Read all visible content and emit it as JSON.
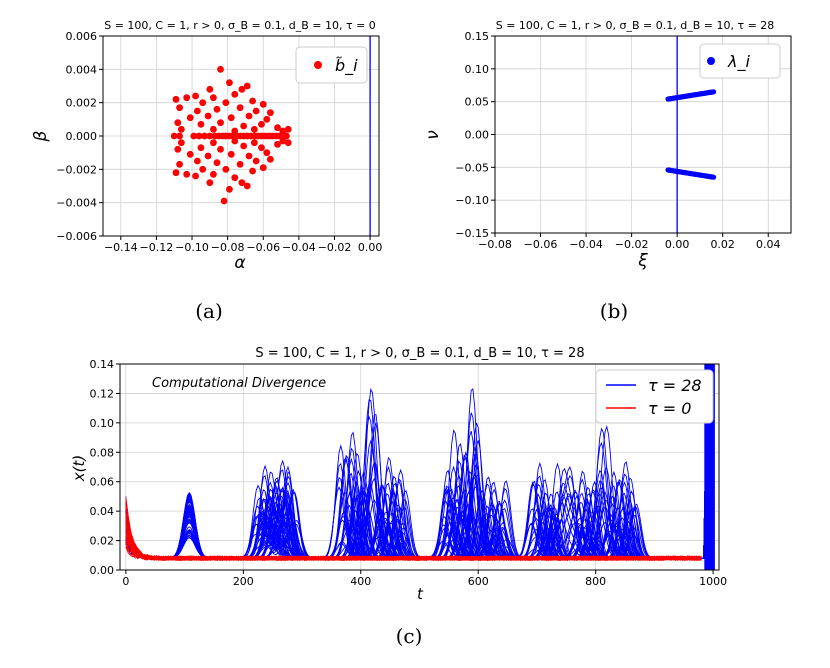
{
  "chart_data": [
    {
      "panel": "a",
      "type": "scatter",
      "title": "S = 100,  C = 1,  r > 0,  σ_B = 0.1,  d_B = 10,  τ = 0",
      "xlabel": "α",
      "ylabel": "β",
      "xlim": [
        -0.15,
        0.005
      ],
      "ylim": [
        -0.006,
        0.006
      ],
      "xticks": [
        -0.14,
        -0.12,
        -0.1,
        -0.08,
        -0.06,
        -0.04,
        -0.02,
        0.0
      ],
      "xtick_labels": [
        "−0.14",
        "−0.12",
        "−0.10",
        "−0.08",
        "−0.06",
        "−0.04",
        "−0.02",
        "0.00"
      ],
      "yticks": [
        -0.006,
        -0.004,
        -0.002,
        0.0,
        0.002,
        0.004,
        0.006
      ],
      "ytick_labels": [
        "−0.006",
        "−0.004",
        "−0.002",
        "0.000",
        "0.002",
        "0.004",
        "0.006"
      ],
      "vline_x": 0.0,
      "grid": true,
      "legend": "top-right",
      "series": [
        {
          "name": "b̃_i",
          "color": "#ff0000",
          "points": [
            [
              -0.084,
              0.004
            ],
            [
              -0.082,
              -0.0039
            ],
            [
              -0.079,
              0.0032
            ],
            [
              -0.09,
              0.0028
            ],
            [
              -0.072,
              0.0028
            ],
            [
              -0.069,
              0.003
            ],
            [
              -0.098,
              0.0024
            ],
            [
              -0.088,
              0.0023
            ],
            [
              -0.076,
              0.0025
            ],
            [
              -0.066,
              0.0021
            ],
            [
              -0.103,
              0.0023
            ],
            [
              -0.109,
              0.0022
            ],
            [
              -0.094,
              0.002
            ],
            [
              -0.081,
              0.002
            ],
            [
              -0.06,
              0.0019
            ],
            [
              -0.107,
              0.0017
            ],
            [
              -0.097,
              0.0015
            ],
            [
              -0.086,
              0.0016
            ],
            [
              -0.073,
              0.0017
            ],
            [
              -0.064,
              0.0015
            ],
            [
              -0.056,
              0.0014
            ],
            [
              -0.101,
              0.0011
            ],
            [
              -0.091,
              0.0012
            ],
            [
              -0.078,
              0.0011
            ],
            [
              -0.068,
              0.0012
            ],
            [
              -0.058,
              0.001
            ],
            [
              -0.108,
              0.0008
            ],
            [
              -0.095,
              0.0007
            ],
            [
              -0.084,
              0.0008
            ],
            [
              -0.071,
              0.0006
            ],
            [
              -0.061,
              0.0007
            ],
            [
              -0.052,
              0.0005
            ],
            [
              -0.106,
              0.0004
            ],
            [
              -0.088,
              0.0004
            ],
            [
              -0.076,
              0.0003
            ],
            [
              -0.065,
              0.0004
            ],
            [
              -0.049,
              0.0003
            ],
            [
              -0.046,
              0.0004
            ],
            [
              -0.11,
              0.0
            ],
            [
              -0.107,
              0.0
            ],
            [
              -0.099,
              0.0
            ],
            [
              -0.096,
              0.0
            ],
            [
              -0.093,
              0.0
            ],
            [
              -0.09,
              0.0
            ],
            [
              -0.087,
              0.0
            ],
            [
              -0.085,
              0.0
            ],
            [
              -0.083,
              0.0
            ],
            [
              -0.081,
              0.0
            ],
            [
              -0.079,
              0.0
            ],
            [
              -0.077,
              0.0
            ],
            [
              -0.075,
              0.0
            ],
            [
              -0.073,
              0.0
            ],
            [
              -0.071,
              0.0
            ],
            [
              -0.069,
              0.0
            ],
            [
              -0.067,
              0.0
            ],
            [
              -0.065,
              0.0
            ],
            [
              -0.063,
              0.0
            ],
            [
              -0.061,
              0.0
            ],
            [
              -0.059,
              0.0
            ],
            [
              -0.057,
              0.0
            ],
            [
              -0.055,
              0.0
            ],
            [
              -0.053,
              0.0
            ],
            [
              -0.051,
              0.0
            ],
            [
              -0.049,
              0.0
            ],
            [
              -0.047,
              0.0
            ],
            [
              -0.106,
              -0.0004
            ],
            [
              -0.088,
              -0.0004
            ],
            [
              -0.076,
              -0.0003
            ],
            [
              -0.065,
              -0.0004
            ],
            [
              -0.049,
              -0.0003
            ],
            [
              -0.046,
              -0.0004
            ],
            [
              -0.108,
              -0.0008
            ],
            [
              -0.095,
              -0.0007
            ],
            [
              -0.084,
              -0.0008
            ],
            [
              -0.071,
              -0.0006
            ],
            [
              -0.061,
              -0.0007
            ],
            [
              -0.052,
              -0.0005
            ],
            [
              -0.101,
              -0.0011
            ],
            [
              -0.091,
              -0.0012
            ],
            [
              -0.078,
              -0.0011
            ],
            [
              -0.068,
              -0.0012
            ],
            [
              -0.058,
              -0.001
            ],
            [
              -0.107,
              -0.0017
            ],
            [
              -0.097,
              -0.0015
            ],
            [
              -0.086,
              -0.0016
            ],
            [
              -0.073,
              -0.0017
            ],
            [
              -0.064,
              -0.0015
            ],
            [
              -0.056,
              -0.0014
            ],
            [
              -0.103,
              -0.0023
            ],
            [
              -0.109,
              -0.0022
            ],
            [
              -0.094,
              -0.002
            ],
            [
              -0.081,
              -0.002
            ],
            [
              -0.06,
              -0.0019
            ],
            [
              -0.098,
              -0.0024
            ],
            [
              -0.088,
              -0.0023
            ],
            [
              -0.076,
              -0.0025
            ],
            [
              -0.066,
              -0.0021
            ],
            [
              -0.079,
              -0.0032
            ],
            [
              -0.09,
              -0.0028
            ],
            [
              -0.072,
              -0.0028
            ],
            [
              -0.069,
              -0.003
            ]
          ]
        }
      ]
    },
    {
      "panel": "b",
      "type": "scatter",
      "title": "S = 100,  C = 1,  r > 0,  σ_B = 0.1,  d_B = 10,  τ = 28",
      "xlabel": "ξ",
      "ylabel": "ν",
      "xlim": [
        -0.08,
        0.05
      ],
      "ylim": [
        -0.15,
        0.15
      ],
      "xticks": [
        -0.08,
        -0.06,
        -0.04,
        -0.02,
        0.0,
        0.02,
        0.04
      ],
      "xtick_labels": [
        "−0.08",
        "−0.06",
        "−0.04",
        "−0.02",
        "0.00",
        "0.02",
        "0.04"
      ],
      "yticks": [
        -0.15,
        -0.1,
        -0.05,
        0.0,
        0.05,
        0.1,
        0.15
      ],
      "ytick_labels": [
        "−0.15",
        "−0.10",
        "−0.05",
        "0.00",
        "0.05",
        "0.10",
        "0.15"
      ],
      "vline_x": 0.0,
      "grid": true,
      "legend": "top-right",
      "series": [
        {
          "name": "λ_i",
          "color": "#0000ff",
          "upper_branch": {
            "x_range": [
              -0.004,
              0.016
            ],
            "y_range": [
              0.054,
              0.065
            ],
            "count": 50
          },
          "lower_branch": {
            "x_range": [
              -0.004,
              0.016
            ],
            "y_range": [
              -0.054,
              -0.065
            ],
            "count": 50
          }
        }
      ]
    },
    {
      "panel": "c",
      "type": "line",
      "title": "S = 100,  C = 1,  r > 0,  σ_B = 0.1,  d_B = 10,  τ = 28",
      "annotation": "Computational Divergence",
      "xlabel": "t",
      "ylabel": "x(t)",
      "xlim": [
        -10,
        1010
      ],
      "ylim": [
        0.0,
        0.14
      ],
      "xticks": [
        0,
        200,
        400,
        600,
        800,
        1000
      ],
      "xtick_labels": [
        "0",
        "200",
        "400",
        "600",
        "800",
        "1000"
      ],
      "yticks": [
        0.0,
        0.02,
        0.04,
        0.06,
        0.08,
        0.1,
        0.12,
        0.14
      ],
      "ytick_labels": [
        "0.00",
        "0.02",
        "0.04",
        "0.06",
        "0.08",
        "0.10",
        "0.12",
        "0.14"
      ],
      "grid": true,
      "legend": "top-right",
      "series": [
        {
          "name": "τ = 28",
          "color": "#0000ff",
          "initial_value": 0.05,
          "baseline": 0.008,
          "bursts": [
            {
              "t": 108,
              "peak": 0.046
            },
            {
              "t": 250,
              "peak": 0.085
            },
            {
              "t": 262,
              "peak": 0.095
            },
            {
              "t": 393,
              "peak": 0.124
            },
            {
              "t": 447,
              "peak": 0.104
            },
            {
              "t": 570,
              "peak": 0.127
            },
            {
              "t": 620,
              "peak": 0.08
            },
            {
              "t": 720,
              "peak": 0.093
            },
            {
              "t": 785,
              "peak": 0.09
            },
            {
              "t": 840,
              "peak": 0.095
            }
          ],
          "diverges_at": 985
        },
        {
          "name": "τ = 0",
          "color": "#ff0000",
          "initial_value": 0.05,
          "steady_state": 0.008,
          "t_end": 980
        }
      ]
    }
  ],
  "captions": [
    "(a)",
    "(b)",
    "(c)"
  ]
}
